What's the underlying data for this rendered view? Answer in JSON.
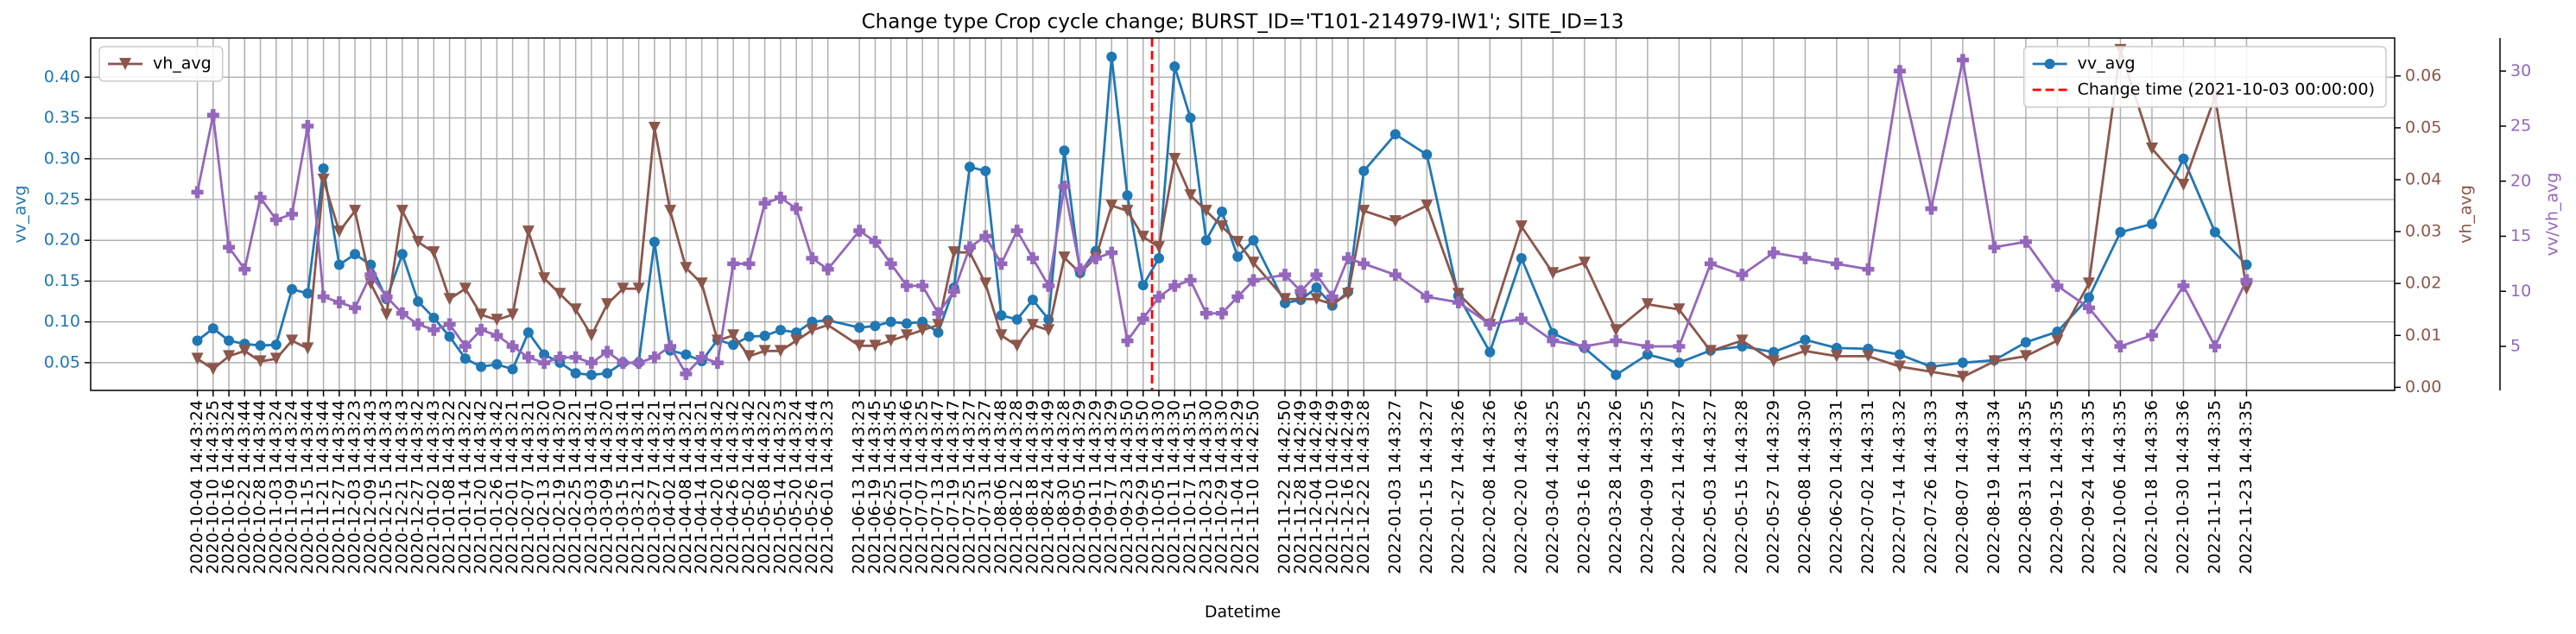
{
  "chart_data": {
    "type": "line",
    "title": "Change type Crop cycle change; BURST_ID='T101-214979-IW1'; SITE_ID=13",
    "xlabel": "Datetime",
    "ylabel": "vv_avg",
    "y2label": "vh_avg",
    "y3label": "vv/vh_avg",
    "x": [
      "2020-10-04 14:43:24",
      "2020-10-10 14:43:25",
      "2020-10-16 14:43:24",
      "2020-10-22 14:43:44",
      "2020-10-28 14:43:44",
      "2020-11-03 14:43:24",
      "2020-11-09 14:43:24",
      "2020-11-15 14:43:44",
      "2020-11-21 14:43:44",
      "2020-11-27 14:43:44",
      "2020-12-03 14:43:23",
      "2020-12-09 14:43:43",
      "2020-12-15 14:43:43",
      "2020-12-21 14:43:43",
      "2020-12-27 14:43:42",
      "2021-01-02 14:43:43",
      "2021-01-08 14:43:22",
      "2021-01-14 14:43:22",
      "2021-01-20 14:43:42",
      "2021-01-26 14:43:42",
      "2021-02-01 14:43:21",
      "2021-02-07 14:43:21",
      "2021-02-13 14:43:20",
      "2021-02-19 14:43:20",
      "2021-02-25 14:43:21",
      "2021-03-03 14:43:41",
      "2021-03-09 14:43:20",
      "2021-03-15 14:43:41",
      "2021-03-21 14:43:41",
      "2021-03-27 14:43:21",
      "2021-04-02 14:43:41",
      "2021-04-08 14:43:21",
      "2021-04-14 14:43:21",
      "2021-04-20 14:43:42",
      "2021-04-26 14:43:42",
      "2021-05-02 14:43:42",
      "2021-05-08 14:43:22",
      "2021-05-14 14:43:23",
      "2021-05-20 14:43:24",
      "2021-05-26 14:43:44",
      "2021-06-01 14:43:23",
      "2021-06-13 14:43:23",
      "2021-06-19 14:43:45",
      "2021-06-25 14:43:45",
      "2021-07-01 14:43:46",
      "2021-07-07 14:43:25",
      "2021-07-13 14:43:47",
      "2021-07-19 14:43:47",
      "2021-07-25 14:43:27",
      "2021-07-31 14:43:27",
      "2021-08-06 14:43:48",
      "2021-08-12 14:43:28",
      "2021-08-18 14:43:49",
      "2021-08-24 14:43:49",
      "2021-08-30 14:43:28",
      "2021-09-05 14:43:29",
      "2021-09-11 14:43:29",
      "2021-09-17 14:43:29",
      "2021-09-23 14:43:50",
      "2021-09-29 14:43:50",
      "2021-10-05 14:43:30",
      "2021-10-11 14:43:30",
      "2021-10-17 14:43:51",
      "2021-10-23 14:43:30",
      "2021-10-29 14:43:30",
      "2021-11-04 14:43:29",
      "2021-11-10 14:42:50",
      "2021-11-22 14:42:50",
      "2021-11-28 14:42:49",
      "2021-12-04 14:42:49",
      "2021-12-10 14:42:49",
      "2021-12-16 14:42:49",
      "2021-12-22 14:43:28",
      "2022-01-03 14:43:27",
      "2022-01-15 14:43:27",
      "2022-01-27 14:43:26",
      "2022-02-08 14:43:26",
      "2022-02-20 14:43:26",
      "2022-03-04 14:43:25",
      "2022-03-16 14:43:25",
      "2022-03-28 14:43:26",
      "2022-04-09 14:43:25",
      "2022-04-21 14:43:27",
      "2022-05-03 14:43:27",
      "2022-05-15 14:43:28",
      "2022-05-27 14:43:29",
      "2022-06-08 14:43:30",
      "2022-06-20 14:43:31",
      "2022-07-02 14:43:31",
      "2022-07-14 14:43:32",
      "2022-07-26 14:43:33",
      "2022-08-07 14:43:34",
      "2022-08-19 14:43:34",
      "2022-08-31 14:43:35",
      "2022-09-12 14:43:35",
      "2022-09-24 14:43:35",
      "2022-10-06 14:43:35",
      "2022-10-18 14:43:36",
      "2022-10-30 14:43:36",
      "2022-11-11 14:43:35",
      "2022-11-23 14:43:35"
    ],
    "xlim": [
      "2020-08-25 00:00:00",
      "2023-01-19 00:00:00"
    ],
    "grid": true,
    "ylim": [
      0.016,
      0.448
    ],
    "yticks": [
      0.05,
      {
        "value": 0.1,
        "label": "0.10"
      },
      0.15,
      {
        "value": 0.2,
        "label": "0.20"
      },
      0.25,
      {
        "value": 0.3,
        "label": "0.30"
      },
      0.35,
      {
        "value": 0.4,
        "label": "0.40"
      }
    ],
    "y2lim": [
      -0.0006,
      0.0673
    ],
    "y2ticks": [
      {
        "value": 0,
        "label": "0.00"
      },
      0.01,
      0.02,
      0.03,
      0.04,
      0.05,
      0.06
    ],
    "y3lim": [
      1,
      33
    ],
    "y3ticks": [
      5,
      10,
      15,
      20,
      25,
      30
    ],
    "series": [
      {
        "name": "vv_avg",
        "color": "#1f77b4",
        "marker": "o",
        "axis": "y",
        "legend": "upper right",
        "values": [
          0.077,
          0.092,
          0.077,
          0.073,
          0.071,
          0.072,
          0.14,
          0.135,
          0.288,
          0.17,
          0.183,
          0.17,
          0.128,
          0.183,
          0.125,
          0.105,
          0.082,
          0.055,
          0.045,
          0.048,
          0.042,
          0.087,
          0.06,
          0.05,
          0.037,
          0.035,
          0.037,
          0.05,
          0.05,
          0.198,
          0.065,
          0.06,
          0.052,
          0.078,
          0.072,
          0.082,
          0.083,
          0.09,
          0.087,
          0.1,
          0.102,
          0.093,
          0.095,
          0.1,
          0.098,
          0.1,
          0.087,
          0.142,
          0.29,
          0.285,
          0.108,
          0.103,
          0.127,
          0.103,
          0.31,
          0.16,
          0.187,
          0.425,
          0.255,
          0.145,
          0.178,
          0.413,
          0.35,
          0.2,
          0.235,
          0.18,
          0.2,
          0.123,
          0.127,
          0.142,
          0.12,
          0.137,
          0.285,
          0.33,
          0.305,
          0.132,
          0.063,
          0.178,
          0.086,
          0.068,
          0.035,
          0.06,
          0.05,
          0.065,
          0.07,
          0.063,
          0.078,
          0.068,
          0.067,
          0.06,
          0.045,
          0.05,
          0.053,
          0.075,
          0.088,
          0.13,
          0.21,
          0.22,
          0.3,
          0.21,
          0.17
        ]
      },
      {
        "name": "vh_avg",
        "color": "#8c564b",
        "marker": "v",
        "axis": "y2",
        "legend": "upper left",
        "values": [
          0.0055,
          0.0035,
          0.006,
          0.007,
          0.005,
          0.0055,
          0.009,
          0.0075,
          0.04,
          0.03,
          0.034,
          0.02,
          0.014,
          0.034,
          0.028,
          0.026,
          0.017,
          0.019,
          0.014,
          0.013,
          0.014,
          0.03,
          0.021,
          0.018,
          0.015,
          0.01,
          0.016,
          0.019,
          0.019,
          0.05,
          0.034,
          0.023,
          0.02,
          0.009,
          0.01,
          0.006,
          0.007,
          0.007,
          0.009,
          0.011,
          0.012,
          0.008,
          0.008,
          0.009,
          0.01,
          0.011,
          0.012,
          0.026,
          0.026,
          0.02,
          0.01,
          0.008,
          0.012,
          0.011,
          0.025,
          0.022,
          0.025,
          0.035,
          0.034,
          0.029,
          0.027,
          0.044,
          0.037,
          0.034,
          0.031,
          0.028,
          0.024,
          0.017,
          0.017,
          0.017,
          0.016,
          0.018,
          0.034,
          0.032,
          0.035,
          0.018,
          0.012,
          0.031,
          0.022,
          0.024,
          0.011,
          0.016,
          0.015,
          0.007,
          0.009,
          0.005,
          0.007,
          0.006,
          0.006,
          0.004,
          0.003,
          0.002,
          0.005,
          0.006,
          0.009,
          0.02,
          0.065,
          0.046,
          0.039,
          0.056,
          0.019
        ]
      },
      {
        "color": "#9467bd",
        "marker": "P",
        "axis": "y3",
        "values": [
          19,
          26,
          14,
          12,
          18.5,
          16.5,
          17,
          25,
          9.5,
          9,
          8.5,
          11.5,
          9.5,
          8,
          7,
          6.5,
          7,
          5,
          6.5,
          6,
          5,
          4,
          3.5,
          4,
          4,
          3.5,
          4.5,
          3.5,
          3.5,
          4,
          5,
          2.5,
          4,
          3.5,
          12.5,
          12.5,
          18,
          18.5,
          17.5,
          13,
          12,
          15.5,
          14.5,
          12.5,
          10.5,
          10.5,
          8,
          10,
          14,
          15,
          12.5,
          15.5,
          13,
          10.5,
          19.5,
          12,
          13,
          13.5,
          5.5,
          7.5,
          9.5,
          10.5,
          11,
          8,
          8,
          9.5,
          11,
          11.5,
          10,
          11.5,
          9.5,
          13,
          12.5,
          11.5,
          9.5,
          9,
          7,
          7.5,
          5.5,
          5,
          5.5,
          5,
          5,
          12.5,
          11.5,
          13.5,
          13,
          12.5,
          12,
          30,
          17.5,
          31,
          14,
          14.5,
          10.5,
          8.5,
          5,
          6,
          10.5,
          5,
          11
        ]
      }
    ],
    "vlines": [
      {
        "name": "Change time (2021-10-03 00:00:00)",
        "x": "2021-10-03 00:00:00",
        "color": "#ff0000",
        "legend": "upper right"
      }
    ]
  }
}
